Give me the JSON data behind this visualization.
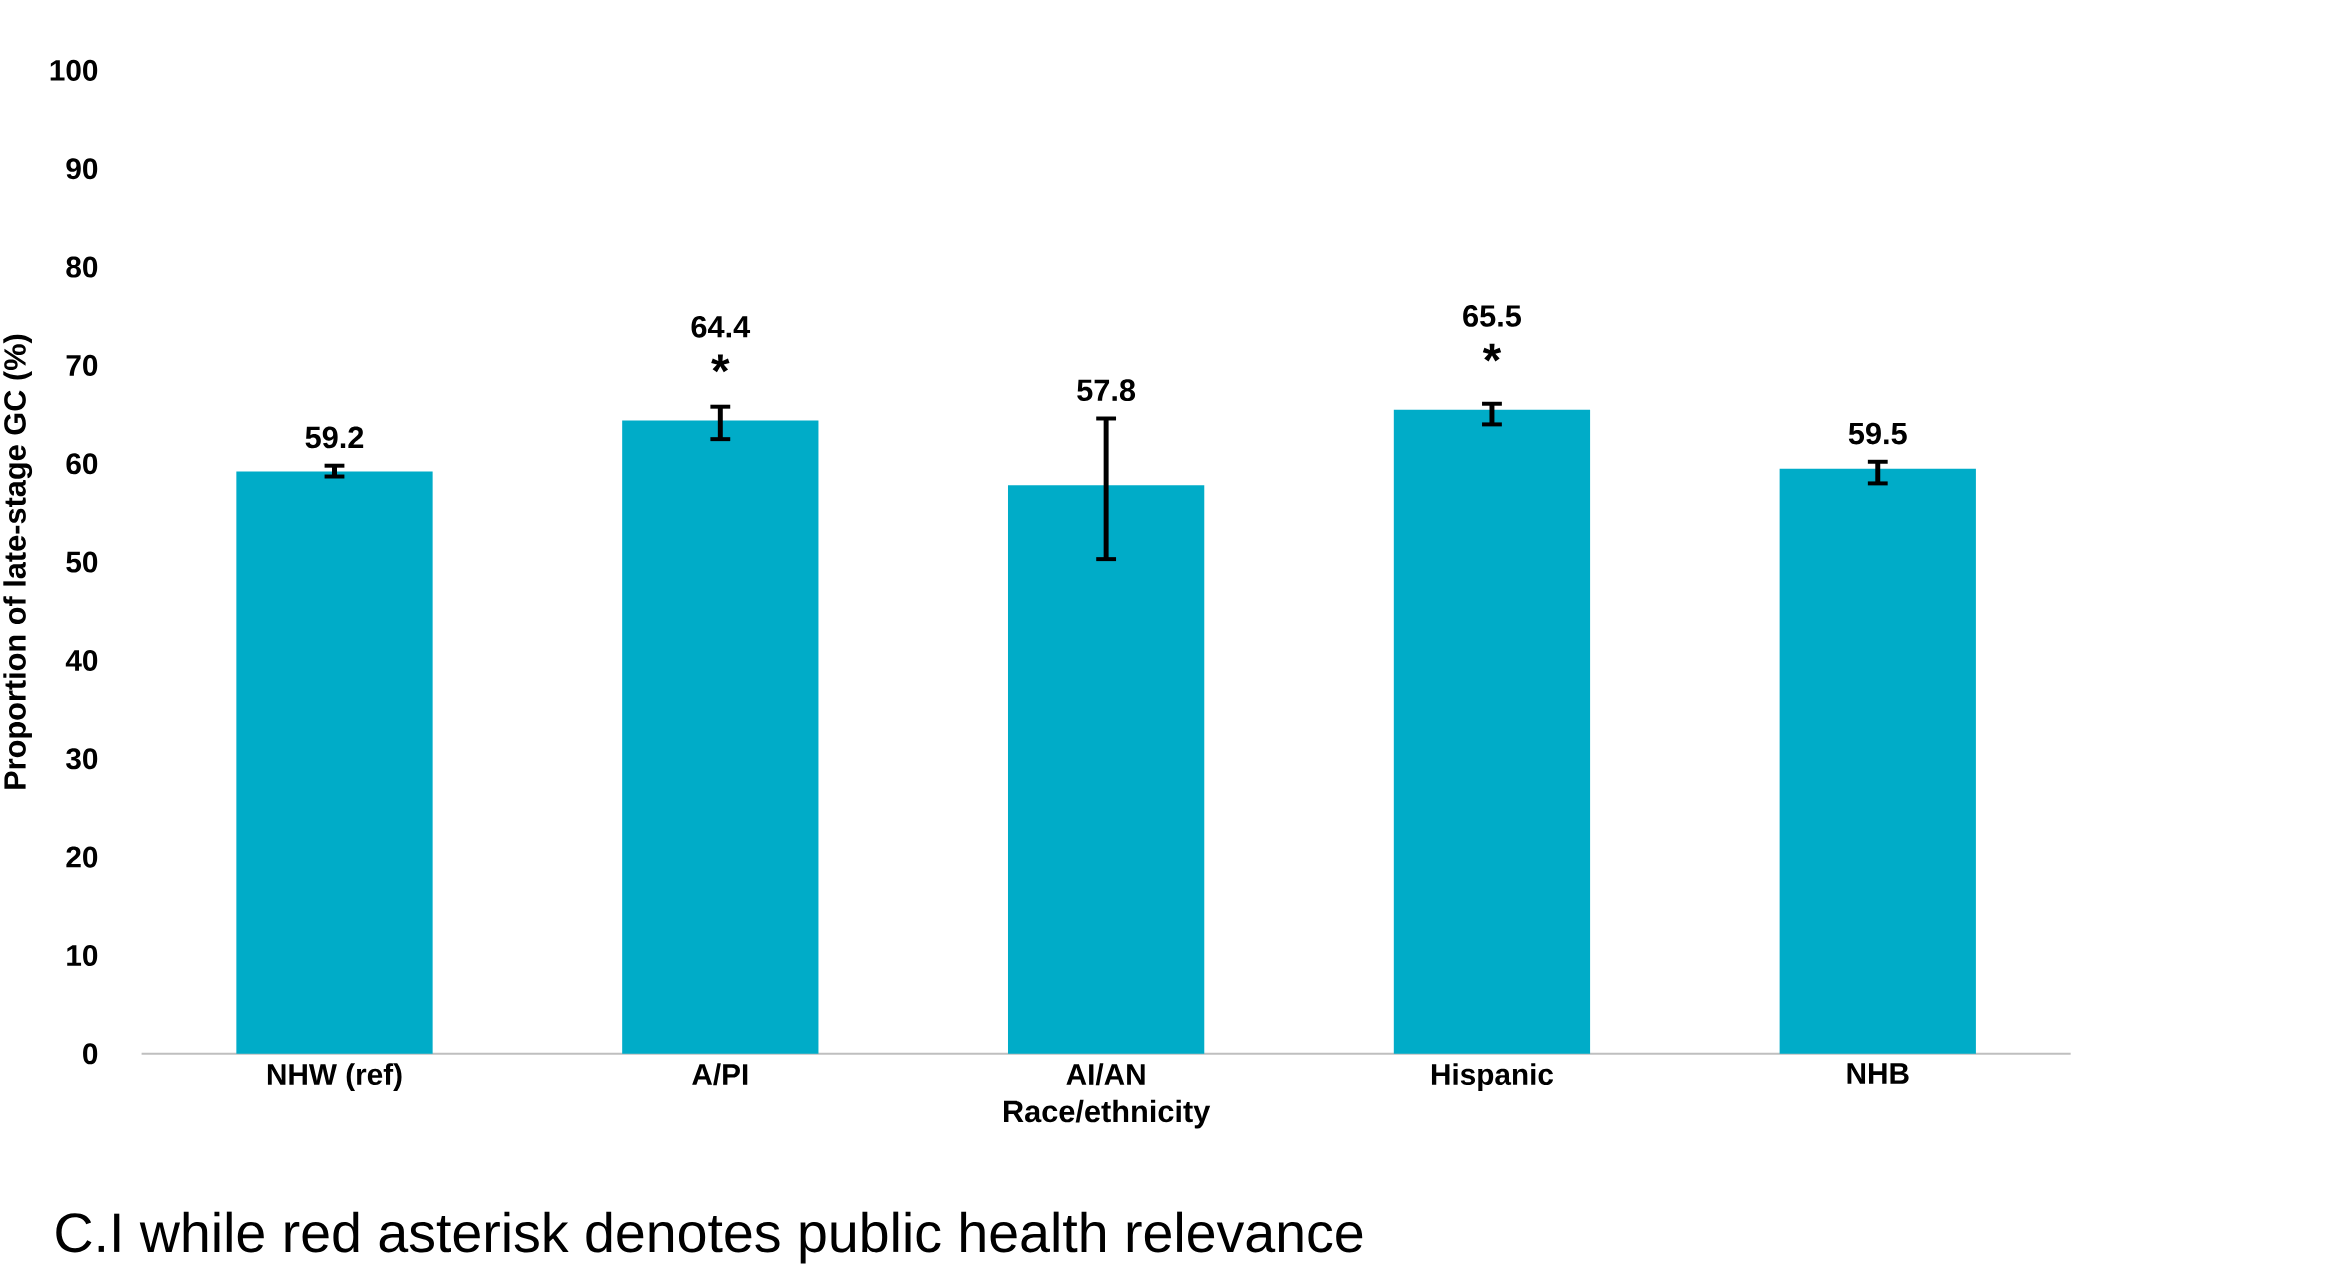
{
  "chart_data": {
    "type": "bar",
    "xlabel": "Race/ethnicity",
    "ylabel": "Proportion of late-stage GC (%)",
    "categories": [
      "NHW (ref)",
      "A/PI",
      "AI/AN",
      "Hispanic",
      "NHB"
    ],
    "values": [
      59.2,
      64.4,
      57.8,
      65.5,
      59.5
    ],
    "errors": [
      [
        58.7,
        59.8
      ],
      [
        62.5,
        65.8
      ],
      [
        50.3,
        64.6
      ],
      [
        64.0,
        66.1
      ],
      [
        58.0,
        60.2
      ]
    ],
    "color": "#00acc8",
    "data_labels": true,
    "ylim": [
      0,
      100
    ],
    "yticks": [
      0,
      10,
      20,
      30,
      40,
      50,
      60,
      70,
      80,
      90,
      100
    ],
    "annotations": [
      {
        "text": "*",
        "x": "A/PI",
        "y": 64.4
      },
      {
        "text": "*",
        "x": "Hispanic",
        "y": 65.5
      },
      "C.I while red asterisk denotes public health relevance"
    ]
  }
}
